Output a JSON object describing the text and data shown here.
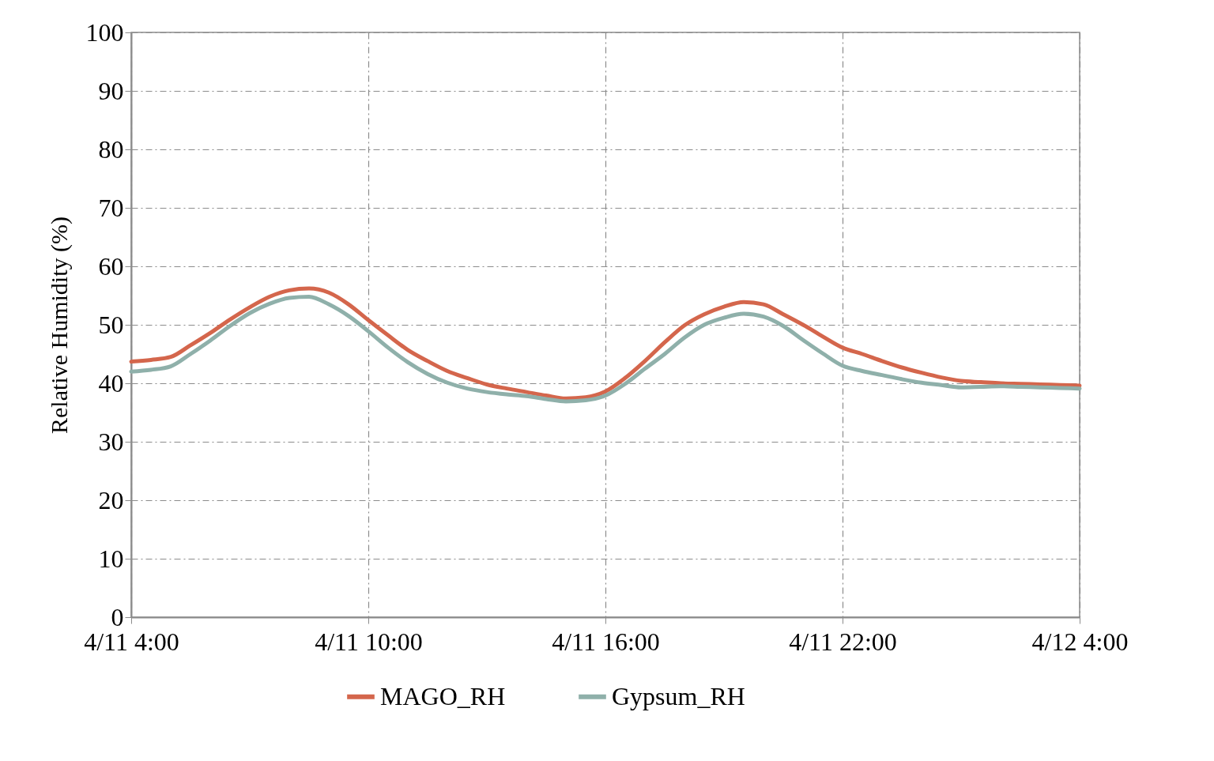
{
  "chart_data": {
    "type": "line",
    "ylabel": "Relative Humidity (%)",
    "categories": [
      "4/11 4:00",
      null,
      null,
      null,
      null,
      null,
      null,
      null,
      null,
      null,
      null,
      null,
      "4/11 10:00",
      null,
      null,
      null,
      null,
      null,
      null,
      null,
      null,
      null,
      null,
      null,
      "4/11 16:00",
      null,
      null,
      null,
      null,
      null,
      null,
      null,
      null,
      null,
      null,
      null,
      "4/11 22:00",
      null,
      null,
      null,
      null,
      null,
      null,
      null,
      null,
      null,
      null,
      null,
      "4/12 4:00"
    ],
    "series": [
      {
        "name": "MAGO_RH",
        "color": "#d4664c",
        "values": [
          43.7,
          44.0,
          44.5,
          46.5,
          48.6,
          50.9,
          53.0,
          54.8,
          55.9,
          56.2,
          55.5,
          53.5,
          50.8,
          48.2,
          45.7,
          43.8,
          42.1,
          40.9,
          39.8,
          39.1,
          38.5,
          37.9,
          37.4,
          37.6,
          38.6,
          40.9,
          43.8,
          47.0,
          49.9,
          51.8,
          53.1,
          53.9,
          53.5,
          51.8,
          50.0,
          48.0,
          46.1,
          45.0,
          43.8,
          42.7,
          41.8,
          41.0,
          40.4,
          40.2,
          40.0,
          39.9,
          39.8,
          39.7,
          39.6
        ]
      },
      {
        "name": "Gypsum_RH",
        "color": "#8fb0aa",
        "values": [
          42.0,
          42.3,
          42.9,
          45.0,
          47.3,
          49.8,
          52.0,
          53.6,
          54.6,
          54.8,
          53.5,
          51.5,
          48.9,
          46.1,
          43.6,
          41.6,
          40.1,
          39.1,
          38.5,
          38.1,
          37.8,
          37.3,
          36.9,
          37.1,
          37.9,
          39.9,
          42.5,
          45.0,
          47.8,
          50.0,
          51.2,
          51.9,
          51.4,
          49.8,
          47.4,
          45.1,
          43.0,
          42.1,
          41.4,
          40.7,
          40.1,
          39.7,
          39.3,
          39.4,
          39.5,
          39.4,
          39.3,
          39.2,
          39.1
        ]
      }
    ],
    "ylim": [
      0,
      100
    ],
    "yticks": [
      0,
      10,
      20,
      30,
      40,
      50,
      60,
      70,
      80,
      90,
      100
    ],
    "grid": true,
    "legend": "bottom",
    "marker": "none",
    "line_style": "solid"
  }
}
